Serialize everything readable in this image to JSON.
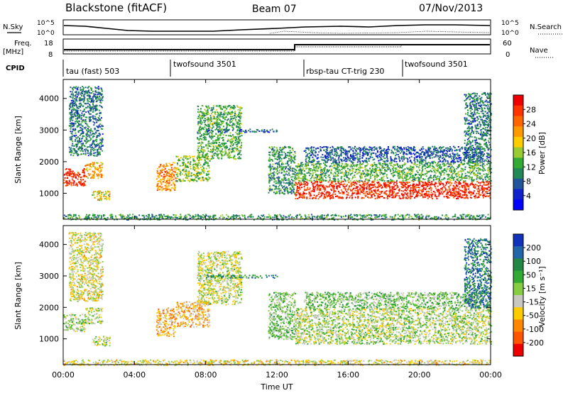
{
  "header": {
    "station": "Blackstone (fitACF)",
    "beam": "Beam 07",
    "date": "07/Nov/2013"
  },
  "top_panels": {
    "nsky_label": "N.Sky",
    "nsky_ticks": [
      "10^5",
      "10^0"
    ],
    "nsearch_label": "N.Search",
    "nsearch_ticks": [
      "10^5",
      "10^0"
    ],
    "freq_label": "Freq.",
    "freq_unit": "[MHz]",
    "freq_ticks": [
      "18",
      "8"
    ],
    "nave_label": "Nave",
    "nave_ticks": [
      "60",
      "0"
    ],
    "cpid_label": "CPID",
    "cpid_segments": [
      {
        "label": "tau (fast) 503",
        "start_h": 0
      },
      {
        "label": "twofsound 3501",
        "start_h": 6
      },
      {
        "label": "rbsp-tau CT-trig 230",
        "start_h": 13.5
      },
      {
        "label": "twofsound 3501",
        "start_h": 18.9
      }
    ]
  },
  "colorbars": {
    "power": {
      "label": "Power [dB]",
      "ticks": [
        "28",
        "24",
        "20",
        "16",
        "12",
        "8",
        "4"
      ],
      "colors": [
        "#ee0000",
        "#ff3300",
        "#ff6600",
        "#ff9900",
        "#ffcc00",
        "#99cc33",
        "#33aa33",
        "#228855",
        "#225599",
        "#1122cc",
        "#0000ff"
      ]
    },
    "velocity": {
      "label": "Velocity [m s⁻¹]",
      "ticks": [
        "200",
        "100",
        "50",
        "15",
        "-15",
        "-50",
        "-100",
        "-200"
      ],
      "colors": [
        "#1133bb",
        "#2266aa",
        "#228844",
        "#33aa33",
        "#88cc44",
        "#c8c8c0",
        "#ffcc00",
        "#ff8800",
        "#ff5500",
        "#ee0000"
      ]
    }
  },
  "axes": {
    "ylabel": "Slant Range [km]",
    "yticks": [
      "4000",
      "3000",
      "2000",
      "1000"
    ],
    "xticks": [
      "00:00",
      "04:00",
      "08:00",
      "12:00",
      "16:00",
      "20:00",
      "00:00"
    ],
    "xlabel": "Time UT"
  },
  "chart_data": {
    "type": "heatmap",
    "panels": [
      {
        "name": "power",
        "value_label": "Power [dB]",
        "ylim": [
          180,
          4600
        ],
        "xlim_hours": [
          0,
          24
        ],
        "echo_regions": [
          {
            "t0": 0,
            "t1": 1.2,
            "r0": 1250,
            "r1": 1800,
            "level": 28
          },
          {
            "t0": 1.2,
            "t1": 2.2,
            "r0": 1500,
            "r1": 2000,
            "level": 20
          },
          {
            "t0": 1.6,
            "t1": 2.6,
            "r0": 800,
            "r1": 1100,
            "level": 18
          },
          {
            "t0": 0.3,
            "t1": 2.2,
            "r0": 2200,
            "r1": 4400,
            "level": 8
          },
          {
            "t0": 5.2,
            "t1": 6.3,
            "r0": 1100,
            "r1": 2000,
            "level": 22
          },
          {
            "t0": 6.3,
            "t1": 8.2,
            "r0": 1400,
            "r1": 2200,
            "level": 14
          },
          {
            "t0": 7.5,
            "t1": 10.0,
            "r0": 2100,
            "r1": 3800,
            "level": 12
          },
          {
            "t0": 8.0,
            "t1": 12.0,
            "r0": 2950,
            "r1": 3050,
            "level": 6
          },
          {
            "t0": 11.5,
            "t1": 13.0,
            "r0": 1000,
            "r1": 2500,
            "level": 10
          },
          {
            "t0": 13.0,
            "t1": 24.0,
            "r0": 850,
            "r1": 1400,
            "level": 28
          },
          {
            "t0": 13.0,
            "t1": 24.0,
            "r0": 1400,
            "r1": 2000,
            "level": 12
          },
          {
            "t0": 13.5,
            "t1": 23.5,
            "r0": 2000,
            "r1": 2500,
            "level": 6
          },
          {
            "t0": 22.5,
            "t1": 24.0,
            "r0": 2000,
            "r1": 4200,
            "level": 8
          },
          {
            "t0": 0,
            "t1": 24,
            "r0": 180,
            "r1": 350,
            "level": 10
          }
        ]
      },
      {
        "name": "velocity",
        "value_label": "Velocity [m s⁻¹]",
        "ylim": [
          180,
          4600
        ],
        "xlim_hours": [
          0,
          24
        ],
        "echo_regions": [
          {
            "t0": 0,
            "t1": 1.2,
            "r0": 1250,
            "r1": 1800,
            "level": 0
          },
          {
            "t0": 1.2,
            "t1": 2.2,
            "r0": 1500,
            "r1": 2000,
            "level": 0
          },
          {
            "t0": 1.6,
            "t1": 2.6,
            "r0": 800,
            "r1": 1100,
            "level": 0
          },
          {
            "t0": 0.3,
            "t1": 2.2,
            "r0": 2200,
            "r1": 4400,
            "level": -30
          },
          {
            "t0": 5.2,
            "t1": 6.3,
            "r0": 1100,
            "r1": 2000,
            "level": -90
          },
          {
            "t0": 6.3,
            "t1": 8.2,
            "r0": 1400,
            "r1": 2200,
            "level": -80
          },
          {
            "t0": 7.5,
            "t1": 10.0,
            "r0": 2100,
            "r1": 3800,
            "level": -20
          },
          {
            "t0": 8.0,
            "t1": 12.0,
            "r0": 2950,
            "r1": 3050,
            "level": 120
          },
          {
            "t0": 11.5,
            "t1": 13.0,
            "r0": 1000,
            "r1": 2500,
            "level": 30
          },
          {
            "t0": 13.0,
            "t1": 24.0,
            "r0": 850,
            "r1": 1400,
            "level": 0
          },
          {
            "t0": 13.0,
            "t1": 24.0,
            "r0": 1400,
            "r1": 2000,
            "level": 0
          },
          {
            "t0": 13.5,
            "t1": 23.5,
            "r0": 2000,
            "r1": 2500,
            "level": 40
          },
          {
            "t0": 22.5,
            "t1": 24.0,
            "r0": 2000,
            "r1": 4200,
            "level": 150
          },
          {
            "t0": 0,
            "t1": 24,
            "r0": 180,
            "r1": 350,
            "level": -40
          }
        ]
      }
    ]
  }
}
